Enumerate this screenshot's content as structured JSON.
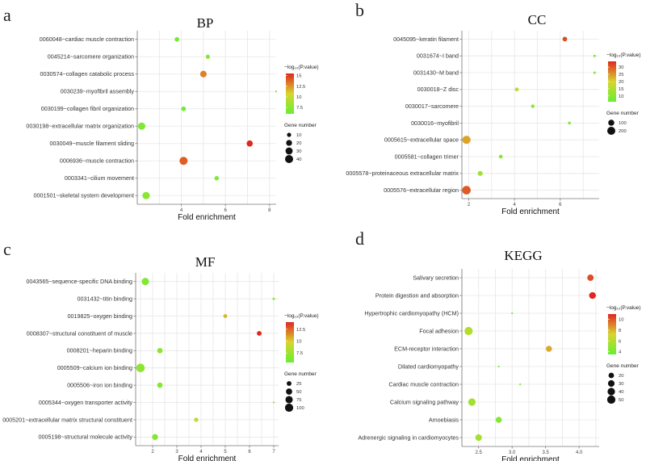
{
  "figure": {
    "colorbar_title": "−log₁₀(P.value)",
    "size_legend_title": "Gene number",
    "xlabel": "Fold enrichment",
    "colors": {
      "low": "#66ee33",
      "mid": "#d8d52e",
      "high": "#e02820",
      "grid": "#e6e6e6",
      "axis": "#777777"
    }
  },
  "chart_data": [
    {
      "panel": "a",
      "title": "BP",
      "type": "scatter",
      "xlabel": "Fold enrichment",
      "xlim": [
        2.0,
        8.3
      ],
      "xticks": [
        4,
        6,
        8
      ],
      "color_range": [
        6,
        15.5
      ],
      "colorbar_ticks": [
        15.0,
        12.5,
        10.0,
        7.5
      ],
      "size_legend": [
        10,
        20,
        30,
        40
      ],
      "size_range": [
        5,
        45
      ],
      "terms": [
        {
          "label": "0060048~cardiac muscle contraction",
          "x": 3.8,
          "count": 12,
          "logp": 6.5
        },
        {
          "label": "0045214~sarcomere organization",
          "x": 5.2,
          "count": 10,
          "logp": 7.3
        },
        {
          "label": "0030574~collagen catabolic process",
          "x": 5.0,
          "count": 25,
          "logp": 13.0
        },
        {
          "label": "0030239~myofibril assembly",
          "x": 8.3,
          "count": 5,
          "logp": 6.3
        },
        {
          "label": "0030199~collagen fibril organization",
          "x": 4.1,
          "count": 12,
          "logp": 6.5
        },
        {
          "label": "0030198~extracellular matrix organization",
          "x": 2.2,
          "count": 32,
          "logp": 7.2
        },
        {
          "label": "0030049~muscle filament sliding",
          "x": 7.1,
          "count": 22,
          "logp": 15.5
        },
        {
          "label": "0006936~muscle contraction",
          "x": 4.1,
          "count": 40,
          "logp": 14.0
        },
        {
          "label": "0003341~cilium movement",
          "x": 5.6,
          "count": 11,
          "logp": 7.0
        },
        {
          "label": "0001501~skeletal system development",
          "x": 2.4,
          "count": 32,
          "logp": 7.5
        }
      ]
    },
    {
      "panel": "b",
      "title": "CC",
      "type": "scatter",
      "xlabel": "Fold enrichment",
      "xlim": [
        1.7,
        7.7
      ],
      "xticks": [
        2,
        4,
        6
      ],
      "color_range": [
        6,
        34
      ],
      "colorbar_ticks": [
        30,
        25,
        20,
        15,
        10
      ],
      "size_legend": [
        100,
        200
      ],
      "size_range": [
        10,
        230
      ],
      "terms": [
        {
          "label": "0045095~keratin filament",
          "x": 6.2,
          "count": 50,
          "logp": 31
        },
        {
          "label": "0031674~I band",
          "x": 7.5,
          "count": 12,
          "logp": 9
        },
        {
          "label": "0031430~M band",
          "x": 7.5,
          "count": 12,
          "logp": 9
        },
        {
          "label": "0030018~Z disc",
          "x": 4.1,
          "count": 30,
          "logp": 17
        },
        {
          "label": "0030017~sarcomere",
          "x": 4.8,
          "count": 25,
          "logp": 11
        },
        {
          "label": "0030016~myofibril",
          "x": 6.4,
          "count": 15,
          "logp": 9
        },
        {
          "label": "0005615~extracellular space",
          "x": 1.9,
          "count": 210,
          "logp": 24
        },
        {
          "label": "0005581~collagen trimer",
          "x": 3.4,
          "count": 30,
          "logp": 10
        },
        {
          "label": "0005578~proteinaceous extracellular matrix",
          "x": 2.5,
          "count": 60,
          "logp": 13
        },
        {
          "label": "0005576~extracellular region",
          "x": 1.9,
          "count": 230,
          "logp": 30
        }
      ]
    },
    {
      "panel": "c",
      "title": "MF",
      "type": "scatter",
      "xlabel": "Fold enrichment",
      "xlim": [
        1.3,
        7.2
      ],
      "xticks": [
        2,
        3,
        4,
        5,
        6,
        7
      ],
      "color_range": [
        5.5,
        14
      ],
      "colorbar_ticks": [
        12.5,
        10.0,
        7.5
      ],
      "size_legend": [
        25,
        50,
        75,
        100
      ],
      "size_range": [
        5,
        110
      ],
      "terms": [
        {
          "label": "0043565~sequence-specific DNA binding",
          "x": 1.7,
          "count": 75,
          "logp": 6.5
        },
        {
          "label": "0031432~titin binding",
          "x": 7.0,
          "count": 6,
          "logp": 6.5
        },
        {
          "label": "0019825~oxygen binding",
          "x": 5.0,
          "count": 15,
          "logp": 10.5
        },
        {
          "label": "0008307~structural constituent of muscle",
          "x": 6.4,
          "count": 25,
          "logp": 14
        },
        {
          "label": "0008201~heparin binding",
          "x": 2.3,
          "count": 35,
          "logp": 6.8
        },
        {
          "label": "0005509~calcium ion binding",
          "x": 1.5,
          "count": 110,
          "logp": 7.0
        },
        {
          "label": "0005506~iron ion binding",
          "x": 2.3,
          "count": 35,
          "logp": 6.7
        },
        {
          "label": "0005344~oxygen transporter activity",
          "x": 7.0,
          "count": 5,
          "logp": 7.0
        },
        {
          "label": "0005201~extracellular matrix structural constituent",
          "x": 3.8,
          "count": 20,
          "logp": 9.0
        },
        {
          "label": "0005198~structural molecule activity",
          "x": 2.1,
          "count": 45,
          "logp": 6.5
        }
      ]
    },
    {
      "panel": "d",
      "title": "KEGG",
      "type": "scatter",
      "xlabel": "Fold enrichment",
      "xlim": [
        2.25,
        4.3
      ],
      "xticks": [
        2.5,
        3.0,
        3.5,
        4.0
      ],
      "color_range": [
        3.5,
        11
      ],
      "colorbar_ticks": [
        10,
        8,
        6,
        4
      ],
      "size_legend": [
        20,
        30,
        40,
        50
      ],
      "size_range": [
        5,
        55
      ],
      "terms": [
        {
          "label": "Salivary secretion",
          "x": 4.17,
          "count": 28,
          "logp": 10.2
        },
        {
          "label": "Protein digestion and absorption",
          "x": 4.2,
          "count": 32,
          "logp": 11.0
        },
        {
          "label": "Hypertrophic cardiomyopathy (HCM)",
          "x": 3.0,
          "count": 5,
          "logp": 4.2
        },
        {
          "label": "Focal adhesion",
          "x": 2.35,
          "count": 50,
          "logp": 6.0
        },
        {
          "label": "ECM-receptor interaction",
          "x": 3.55,
          "count": 25,
          "logp": 8.2
        },
        {
          "label": "Dilated cardiomyopathy",
          "x": 2.8,
          "count": 5,
          "logp": 4.5
        },
        {
          "label": "Cardiac muscle contraction",
          "x": 3.12,
          "count": 5,
          "logp": 4.5
        },
        {
          "label": "Calcium signaling pathway",
          "x": 2.4,
          "count": 40,
          "logp": 5.5
        },
        {
          "label": "Amoebiasis",
          "x": 2.8,
          "count": 25,
          "logp": 4.5
        },
        {
          "label": "Adrenergic signaling in cardiomyocytes",
          "x": 2.5,
          "count": 30,
          "logp": 5.5
        }
      ]
    }
  ]
}
